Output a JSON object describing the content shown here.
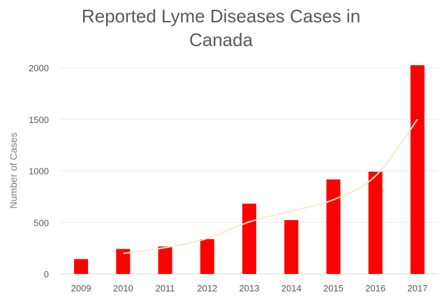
{
  "chart_data": {
    "type": "bar",
    "title_lines": [
      "Reported Lyme Diseases Cases in",
      "Canada"
    ],
    "xlabel": "",
    "ylabel": "Number of Cases",
    "categories": [
      "2009",
      "2010",
      "2011",
      "2012",
      "2013",
      "2014",
      "2015",
      "2016",
      "2017"
    ],
    "values": [
      144,
      242,
      267,
      338,
      682,
      522,
      917,
      992,
      2025
    ],
    "ylim": [
      0,
      2000
    ],
    "yticks": [
      0,
      500,
      1000,
      1500,
      2000
    ],
    "grid": true,
    "legend": "none",
    "bar_color": "#ff0000",
    "trendline": {
      "type": "polynomial",
      "color": "#fde9c9",
      "values": [
        null,
        200,
        255,
        345,
        505,
        610,
        720,
        950,
        1500
      ]
    }
  }
}
